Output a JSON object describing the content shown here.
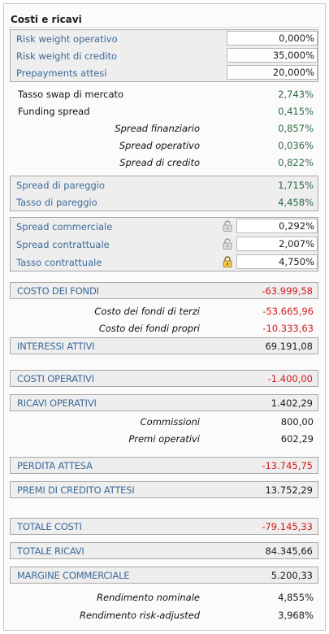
{
  "title": "Costi e ricavi",
  "inputs": [
    {
      "label": "Risk weight operativo",
      "value": "0,000%"
    },
    {
      "label": "Risk weight di credito",
      "value": "35,000%"
    },
    {
      "label": "Prepayments attesi",
      "value": "20,000%"
    }
  ],
  "rates": {
    "tasso_swap": {
      "label": "Tasso swap di mercato",
      "value": "2,743%"
    },
    "funding": {
      "label": "Funding spread",
      "value": "0,415%"
    },
    "sub": [
      {
        "label": "Spread finanziario",
        "value": "0,857%"
      },
      {
        "label": "Spread operativo",
        "value": "0,036%"
      },
      {
        "label": "Spread di credito",
        "value": "0,822%"
      }
    ]
  },
  "pareggio": [
    {
      "label": "Spread di pareggio",
      "value": "1,715%"
    },
    {
      "label": "Tasso di pareggio",
      "value": "4,458%"
    }
  ],
  "commerciale": [
    {
      "label": "Spread commerciale",
      "value": "0,292%",
      "lock": "unlocked"
    },
    {
      "label": "Spread contrattuale",
      "value": "2,007%",
      "lock": "unlocked"
    },
    {
      "label": "Tasso contrattuale",
      "value": "4,750%",
      "lock": "locked"
    }
  ],
  "costo_fondi": {
    "label": "COSTO DEI FONDI",
    "value": "-63.999,58"
  },
  "costo_fondi_sub": [
    {
      "label": "Costo dei fondi di terzi",
      "value": "-53.665,96"
    },
    {
      "label": "Costo dei fondi propri",
      "value": "-10.333,63"
    }
  ],
  "interessi": {
    "label": "INTERESSI ATTIVI",
    "value": "69.191,08"
  },
  "costi_op": {
    "label": "COSTI OPERATIVI",
    "value": "-1.400,00"
  },
  "ricavi_op": {
    "label": "RICAVI OPERATIVI",
    "value": "1.402,29"
  },
  "ricavi_op_sub": [
    {
      "label": "Commissioni",
      "value": "800,00"
    },
    {
      "label": "Premi operativi",
      "value": "602,29"
    }
  ],
  "perdita": {
    "label": "PERDITA ATTESA",
    "value": "-13.745,75"
  },
  "premi_credito": {
    "label": "PREMI DI CREDITO ATTESI",
    "value": "13.752,29"
  },
  "totale_costi": {
    "label": "TOTALE COSTI",
    "value": "-79.145,33"
  },
  "totale_ricavi": {
    "label": "TOTALE RICAVI",
    "value": "84.345,66"
  },
  "margine": {
    "label": "MARGINE COMMERCIALE",
    "value": "5.200,33"
  },
  "rendimenti": [
    {
      "label": "Rendimento nominale",
      "value": "4,855%"
    },
    {
      "label": "Rendimento risk-adjusted",
      "value": "3,968%"
    }
  ],
  "colors": {
    "label_blue": "#3d6b99",
    "value_green": "#2e6b43",
    "value_red": "#d31a1a"
  }
}
